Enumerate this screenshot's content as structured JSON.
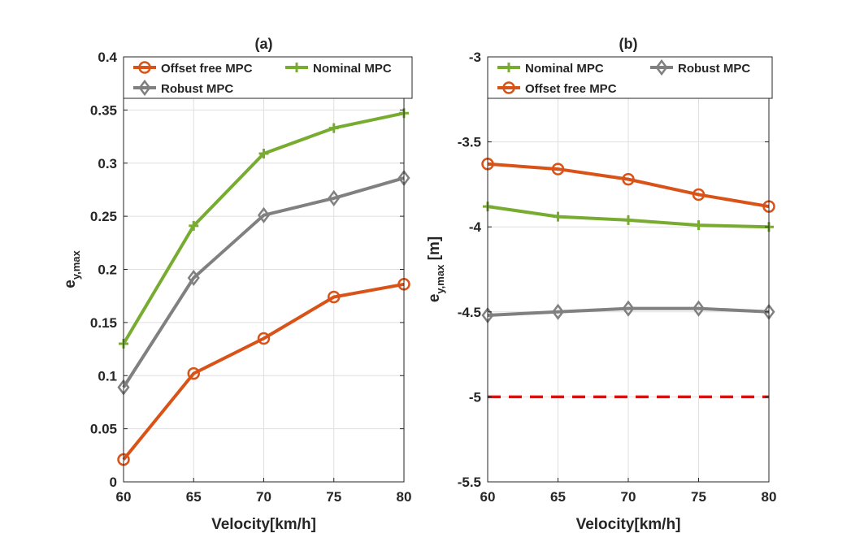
{
  "chart_data": [
    {
      "type": "line",
      "title": "(a)",
      "xlabel": "Velocity[km/h]",
      "ylabel": {
        "base": "e",
        "sub": "y,max",
        "suffix": ""
      },
      "x": [
        60,
        65,
        70,
        75,
        80
      ],
      "xlim": [
        60,
        80
      ],
      "ylim": [
        0,
        0.4
      ],
      "xticks": [
        "60",
        "65",
        "70",
        "75",
        "80"
      ],
      "yticks": [
        "0",
        "0.05",
        "0.1",
        "0.15",
        "0.2",
        "0.25",
        "0.3",
        "0.35",
        "0.4"
      ],
      "grid": true,
      "legend_position": "top",
      "series": [
        {
          "name": "Offset free MPC",
          "marker": "circle",
          "color": "#d95319",
          "values": [
            0.021,
            0.102,
            0.135,
            0.174,
            0.186
          ]
        },
        {
          "name": "Nominal MPC",
          "marker": "plus",
          "color": "#77ac30",
          "values": [
            0.13,
            0.241,
            0.309,
            0.333,
            0.347
          ]
        },
        {
          "name": "Robust MPC",
          "marker": "diamond",
          "color": "#808080",
          "values": [
            0.089,
            0.192,
            0.251,
            0.267,
            0.286
          ]
        }
      ]
    },
    {
      "type": "line",
      "title": "(b)",
      "xlabel": "Velocity[km/h]",
      "ylabel": {
        "base": "e",
        "sub": "y,max",
        "suffix": " [m]"
      },
      "x": [
        60,
        65,
        70,
        75,
        80
      ],
      "xlim": [
        60,
        80
      ],
      "ylim": [
        -5.5,
        -3
      ],
      "xticks": [
        "60",
        "65",
        "70",
        "75",
        "80"
      ],
      "yticks": [
        "-5.5",
        "-5",
        "-4.5",
        "-4",
        "-3.5",
        "-3"
      ],
      "grid": true,
      "legend_position": "top",
      "reference_line": {
        "y": -5,
        "color": "#ff0000",
        "style": "dashed"
      },
      "series": [
        {
          "name": "Nominal MPC",
          "marker": "plus",
          "color": "#77ac30",
          "values": [
            -3.88,
            -3.94,
            -3.96,
            -3.99,
            -4.0
          ]
        },
        {
          "name": "Robust MPC",
          "marker": "diamond",
          "color": "#808080",
          "values": [
            -4.52,
            -4.5,
            -4.48,
            -4.48,
            -4.5
          ]
        },
        {
          "name": "Offset free MPC",
          "marker": "circle",
          "color": "#d95319",
          "values": [
            -3.63,
            -3.66,
            -3.72,
            -3.81,
            -3.88
          ]
        }
      ]
    }
  ]
}
